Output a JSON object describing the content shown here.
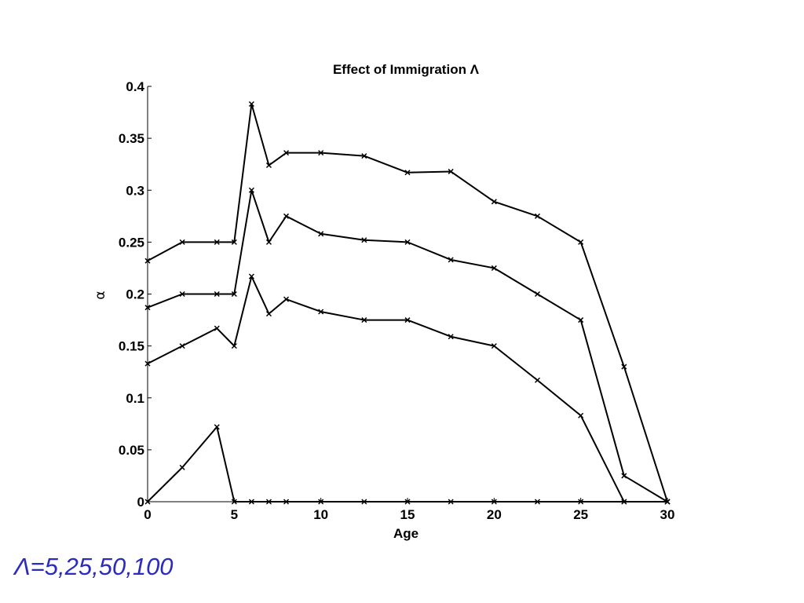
{
  "caption": "Λ=5,25,50,100",
  "colors": {
    "line": "#000000",
    "caption": "#2b2bbf"
  },
  "chart_data": {
    "type": "line",
    "title": "Effect of Immigration Λ",
    "xlabel": "Age",
    "ylabel": "α",
    "xlim": [
      0,
      30
    ],
    "ylim": [
      0,
      0.4
    ],
    "xticks": [
      0,
      5,
      10,
      15,
      20,
      25,
      30
    ],
    "yticks": [
      0,
      0.05,
      0.1,
      0.15,
      0.2,
      0.25,
      0.3,
      0.35,
      0.4
    ],
    "yticklabels": [
      "0",
      "0.05",
      "0.1",
      "0.15",
      "0.2",
      "0.25",
      "0.3",
      "0.35",
      "0.4"
    ],
    "grid": false,
    "marker": "x",
    "x": [
      0,
      2,
      4,
      5,
      6,
      7,
      8,
      10,
      12.5,
      15,
      17.5,
      20,
      22.5,
      25,
      27.5,
      30
    ],
    "series": [
      {
        "values": [
          0,
          0.033,
          0.072,
          0,
          0,
          0,
          0,
          0,
          0,
          0,
          0,
          0,
          0,
          0,
          0,
          0
        ]
      },
      {
        "values": [
          0.133,
          0.15,
          0.167,
          0.15,
          0.217,
          0.181,
          0.195,
          0.183,
          0.175,
          0.175,
          0.159,
          0.15,
          0.117,
          0.083,
          0,
          0
        ]
      },
      {
        "values": [
          0.187,
          0.2,
          0.2,
          0.2,
          0.3,
          0.25,
          0.275,
          0.258,
          0.252,
          0.25,
          0.233,
          0.225,
          0.2,
          0.175,
          0.025,
          0
        ]
      },
      {
        "values": [
          0.232,
          0.25,
          0.25,
          0.25,
          0.383,
          0.324,
          0.336,
          0.336,
          0.333,
          0.317,
          0.318,
          0.289,
          0.275,
          0.25,
          0.13,
          0
        ]
      }
    ]
  }
}
